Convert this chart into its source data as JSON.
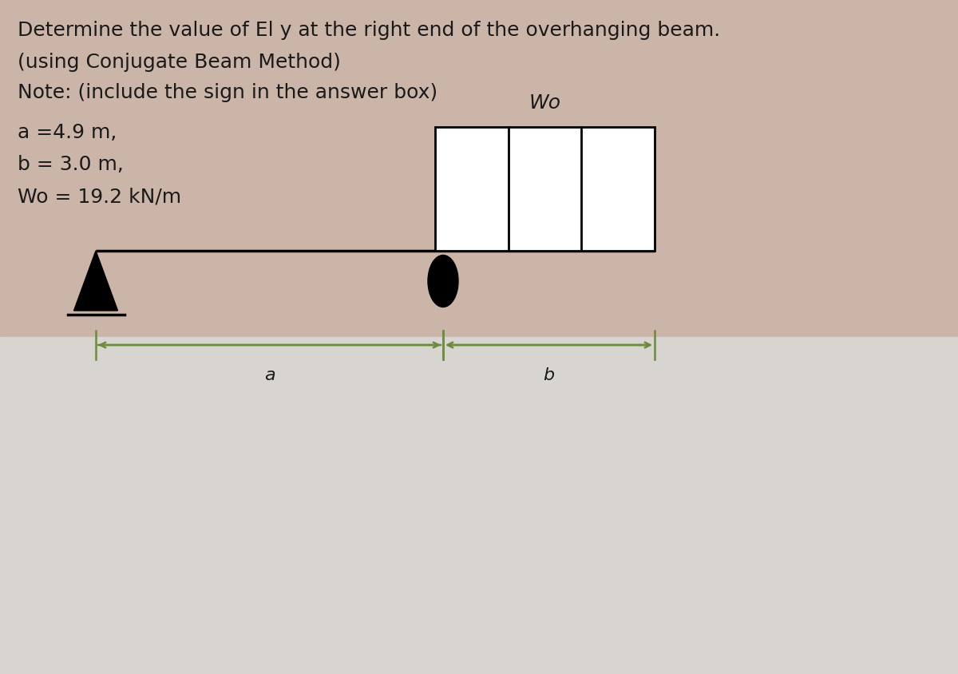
{
  "title_line1": "Determine the value of El y at the right end of the overhanging beam.",
  "title_line2": "(using Conjugate Beam Method)",
  "title_line3": "Note: (include the sign in the answer box)",
  "param_a": "a =4.9 m,",
  "param_b": "b = 3.0 m,",
  "param_wo": "Wo = 19.2 kN/m",
  "wo_label": "Wo",
  "a_label": "a",
  "b_label": "b",
  "bg_top_color": "#d4b8ae",
  "bg_bottom_color": "#d8d0cc",
  "beam_color": "#000000",
  "load_box_color": "#000000",
  "load_fill_color": "#ffffff",
  "arrow_color": "#6b8c3a",
  "text_color": "#1a1a1a",
  "font_size_title": 18,
  "font_size_params": 18,
  "font_size_labels": 16
}
